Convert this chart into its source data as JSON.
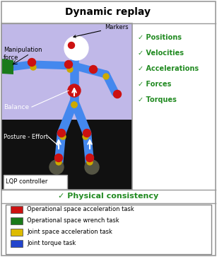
{
  "title": "Dynamic replay",
  "physical_consistency": "✓ Physical consistency",
  "checklist": [
    "✓ Positions",
    "✓ Velocities",
    "✓ Accelerations",
    "✓ Forces",
    "✓ Torques"
  ],
  "legend_items": [
    {
      "color": "#cc1111",
      "label": "Operational space acceleration task"
    },
    {
      "color": "#1a7a1a",
      "label": "Operational space wrench task"
    },
    {
      "color": "#ddbb00",
      "label": "Joint space acceleration task"
    },
    {
      "color": "#2244cc",
      "label": "Joint torque task"
    }
  ],
  "bg_upper_color": "#c0b8e8",
  "bg_lower_color": "#111111",
  "checklist_color": "#228B22",
  "physical_color": "#228B22",
  "title_fontsize": 10,
  "checklist_fontsize": 7,
  "physical_fontsize": 8,
  "legend_fontsize": 6,
  "label_fontsize": 6
}
